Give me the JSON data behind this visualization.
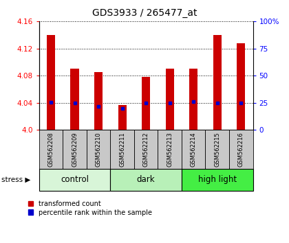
{
  "title": "GDS3933 / 265477_at",
  "samples": [
    "GSM562208",
    "GSM562209",
    "GSM562210",
    "GSM562211",
    "GSM562212",
    "GSM562213",
    "GSM562214",
    "GSM562215",
    "GSM562216"
  ],
  "red_values": [
    4.14,
    4.09,
    4.085,
    4.037,
    4.078,
    4.09,
    4.09,
    4.14,
    4.128
  ],
  "blue_values": [
    25.5,
    25.0,
    22.0,
    20.0,
    25.0,
    25.0,
    26.0,
    25.0,
    25.0
  ],
  "ylim_left": [
    4.0,
    4.16
  ],
  "ylim_right": [
    0,
    100
  ],
  "yticks_left": [
    4.0,
    4.04,
    4.08,
    4.12,
    4.16
  ],
  "yticks_right": [
    0,
    25,
    50,
    75,
    100
  ],
  "ytick_labels_right": [
    "0",
    "25",
    "50",
    "75",
    "100%"
  ],
  "groups": [
    {
      "label": "control",
      "n": 3,
      "color": "#d8f5d8"
    },
    {
      "label": "dark",
      "n": 3,
      "color": "#b8f0b8"
    },
    {
      "label": "high light",
      "n": 3,
      "color": "#44ee44"
    }
  ],
  "red_color": "#cc0000",
  "blue_color": "#0000cc",
  "bar_width": 0.35,
  "baseline": 4.0,
  "background_label": "#c8c8c8",
  "stress_label": "stress ▶",
  "legend_red": "transformed count",
  "legend_blue": "percentile rank within the sample"
}
